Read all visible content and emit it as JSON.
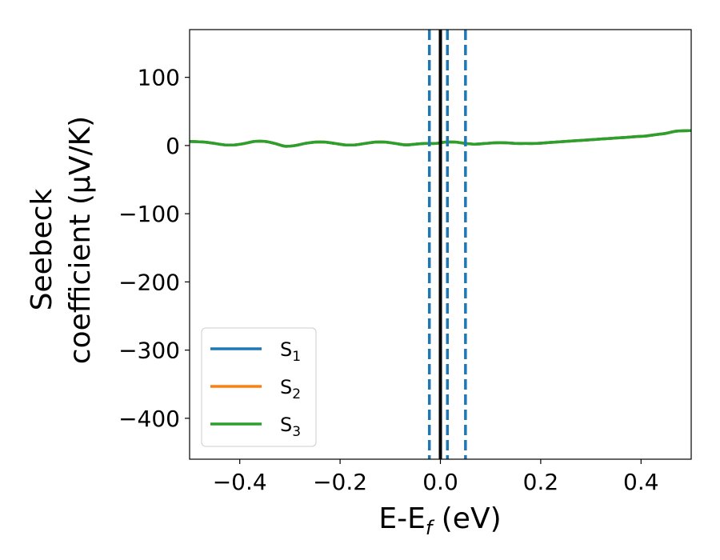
{
  "chart_data": {
    "type": "line",
    "xlabel": {
      "main": "E-E",
      "sub": "f",
      "unit": " (eV)"
    },
    "ylabel": {
      "line1": "Seebeck",
      "line2": "coefficient  (μV/K)"
    },
    "xlim": [
      -0.5,
      0.5
    ],
    "ylim": [
      -460,
      170
    ],
    "xticks": [
      -0.4,
      -0.2,
      0.0,
      0.2,
      0.4
    ],
    "xtick_labels": [
      "−0.4",
      "−0.2",
      "0.0",
      "0.2",
      "0.4"
    ],
    "yticks": [
      -400,
      -300,
      -200,
      -100,
      0,
      100
    ],
    "ytick_labels": [
      "−400",
      "−300",
      "−200",
      "−100",
      "0",
      "100"
    ],
    "grid": false,
    "legend_position": "bottom-left",
    "x": [
      -0.5,
      -0.47,
      -0.45,
      -0.43,
      -0.41,
      -0.39,
      -0.37,
      -0.35,
      -0.33,
      -0.31,
      -0.29,
      -0.27,
      -0.25,
      -0.23,
      -0.21,
      -0.19,
      -0.17,
      -0.15,
      -0.13,
      -0.11,
      -0.09,
      -0.07,
      -0.05,
      -0.03,
      -0.01,
      0.01,
      0.03,
      0.05,
      0.07,
      0.09,
      0.11,
      0.13,
      0.15,
      0.17,
      0.19,
      0.21,
      0.23,
      0.25,
      0.27,
      0.29,
      0.31,
      0.33,
      0.35,
      0.37,
      0.39,
      0.41,
      0.43,
      0.45,
      0.47,
      0.5
    ],
    "series": [
      {
        "name": "S",
        "sub": "1",
        "color": "#1f77b4",
        "values": [
          6,
          5,
          3,
          1,
          1,
          3,
          6,
          6,
          3,
          -1,
          0,
          3,
          5,
          5,
          3,
          1,
          1,
          3,
          5,
          5,
          3,
          1,
          2,
          3,
          3,
          5,
          5,
          3,
          2,
          3,
          4,
          4,
          3,
          3,
          3,
          4,
          5,
          6,
          7,
          8,
          9,
          10,
          11,
          12,
          13,
          14,
          16,
          18,
          21,
          22
        ]
      },
      {
        "name": "S",
        "sub": "2",
        "color": "#ff7f0e",
        "values": [
          6,
          5,
          3,
          1,
          1,
          3,
          6,
          6,
          3,
          -1,
          0,
          3,
          5,
          5,
          3,
          1,
          1,
          3,
          5,
          5,
          3,
          1,
          2,
          3,
          3,
          5,
          5,
          3,
          2,
          3,
          4,
          4,
          3,
          3,
          3,
          4,
          5,
          6,
          7,
          8,
          9,
          10,
          11,
          12,
          13,
          14,
          16,
          18,
          21,
          22
        ]
      },
      {
        "name": "S",
        "sub": "3",
        "color": "#2ca02c",
        "values": [
          6,
          5,
          3,
          1,
          1,
          3,
          6,
          6,
          3,
          -1,
          0,
          3,
          5,
          5,
          3,
          1,
          1,
          3,
          5,
          5,
          3,
          1,
          2,
          3,
          3,
          5,
          5,
          3,
          2,
          3,
          4,
          4,
          3,
          3,
          3,
          4,
          5,
          6,
          7,
          8,
          9,
          10,
          11,
          12,
          13,
          14,
          16,
          18,
          21,
          22
        ]
      }
    ],
    "vlines": [
      {
        "x": -0.022,
        "style": "dashed",
        "color": "#1f77b4"
      },
      {
        "x": 0.014,
        "style": "dashed",
        "color": "#1f77b4"
      },
      {
        "x": 0.05,
        "style": "dashed",
        "color": "#1f77b4"
      },
      {
        "x": 0.0,
        "style": "solid",
        "color": "#000000"
      }
    ]
  }
}
